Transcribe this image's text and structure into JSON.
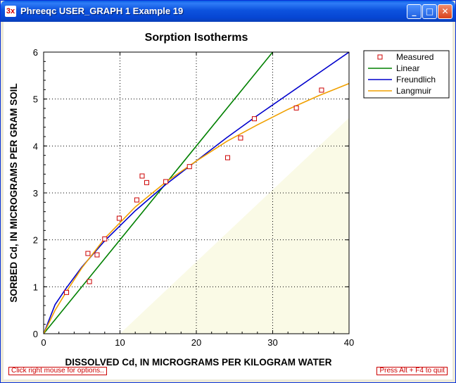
{
  "window": {
    "title": "Phreeqc USER_GRAPH 1 Example 19",
    "icon_text": "3x",
    "icon": "phreeqc-app-icon",
    "min_glyph": "_",
    "max_glyph": "□",
    "close_glyph": "✕"
  },
  "status": {
    "left": "Click right mouse for options..",
    "right": "Press Alt + F4 to quit"
  },
  "colors": {
    "measured": "#cc0000",
    "linear": "#008000",
    "freundlich": "#0000cc",
    "langmuir": "#f0a000",
    "shade": "#fafae6"
  },
  "chart_data": {
    "type": "scatter",
    "title": "Sorption Isotherms",
    "xlabel": "DISSOLVED Cd, IN MICROGRAMS PER KILOGRAM WATER",
    "ylabel": "SORBED Cd, IN MICROGRAMS PER GRAM SOIL",
    "xlim": [
      0,
      40
    ],
    "ylim": [
      0,
      6
    ],
    "xticks": [
      0,
      10,
      20,
      30,
      40
    ],
    "yticks": [
      0,
      1,
      2,
      3,
      4,
      5,
      6
    ],
    "grid": true,
    "legend_position": "right",
    "series": [
      {
        "name": "Measured",
        "kind": "markers",
        "marker": "square",
        "x": [
          3.0,
          5.8,
          6.0,
          7.0,
          8.0,
          9.9,
          12.2,
          12.9,
          13.5,
          16.0,
          19.1,
          24.1,
          25.8,
          27.6,
          33.1,
          36.4
        ],
        "y": [
          0.88,
          1.71,
          1.11,
          1.68,
          2.02,
          2.46,
          2.85,
          3.36,
          3.22,
          3.24,
          3.56,
          3.75,
          4.17,
          4.58,
          4.81,
          5.19
        ]
      },
      {
        "name": "Linear",
        "kind": "line",
        "x": [
          0,
          30
        ],
        "y": [
          0,
          6
        ]
      },
      {
        "name": "Freundlich",
        "kind": "line",
        "x": [
          0,
          1.5,
          3,
          5,
          8,
          12,
          16,
          20,
          24,
          28,
          32,
          36,
          40
        ],
        "y": [
          0,
          0.62,
          0.98,
          1.42,
          1.98,
          2.62,
          3.18,
          3.68,
          4.18,
          4.65,
          5.1,
          5.55,
          6.0
        ]
      },
      {
        "name": "Langmuir",
        "kind": "line",
        "x": [
          0,
          1.5,
          3,
          5,
          8,
          12,
          16,
          20,
          24,
          28,
          32,
          36,
          40
        ],
        "y": [
          0,
          0.5,
          0.9,
          1.4,
          2.03,
          2.7,
          3.23,
          3.68,
          4.1,
          4.45,
          4.78,
          5.07,
          5.33
        ]
      }
    ]
  }
}
